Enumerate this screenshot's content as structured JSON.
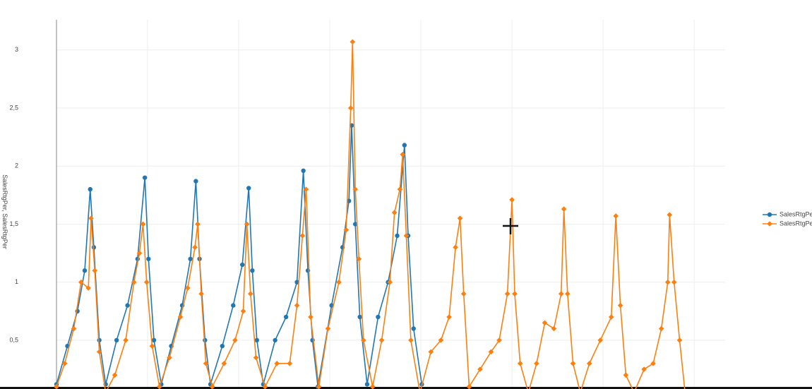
{
  "chart_data": {
    "type": "line",
    "y_label": "SalesRtgPer, SalesRtgPer",
    "xlim": [
      0,
      7.34
    ],
    "xticks": [
      0,
      1,
      2,
      3,
      4,
      5,
      6,
      7
    ],
    "ylim": [
      0.08,
      3.26
    ],
    "yticks": [
      {
        "value": 0.5,
        "label": "0,5"
      },
      1,
      {
        "value": 1.5,
        "label": "1,5"
      },
      2,
      {
        "value": 2.5,
        "label": "2,5"
      },
      3
    ],
    "grid": true,
    "legend": "right",
    "series": [
      {
        "name": "SalesRtgPer",
        "color": "#1f77b4",
        "marker": "circle",
        "x": [
          0,
          0.12,
          0.23,
          0.31,
          0.37,
          0.41,
          0.47,
          0.54,
          0.66,
          0.78,
          0.89,
          0.97,
          1.01,
          1.07,
          1.15,
          1.26,
          1.38,
          1.47,
          1.53,
          1.57,
          1.63,
          1.69,
          1.82,
          1.94,
          2.04,
          2.11,
          2.15,
          2.2,
          2.27,
          2.4,
          2.52,
          2.64,
          2.71,
          2.76,
          2.81,
          2.87,
          3.02,
          3.14,
          3.21,
          3.24,
          3.28,
          3.33,
          3.41,
          3.53,
          3.64,
          3.74,
          3.82,
          3.86,
          3.92,
          4.01
        ],
        "values": [
          0.12,
          0.45,
          0.75,
          1.1,
          1.8,
          1.3,
          0.5,
          0.12,
          0.5,
          0.8,
          1.2,
          1.9,
          1.2,
          0.5,
          0.12,
          0.45,
          0.8,
          1.2,
          1.87,
          1.2,
          0.5,
          0.12,
          0.45,
          0.8,
          1.15,
          1.81,
          1.1,
          0.5,
          0.12,
          0.5,
          0.7,
          1.0,
          1.96,
          1.1,
          0.5,
          0.1,
          0.8,
          1.3,
          1.7,
          2.35,
          1.5,
          0.7,
          0.12,
          0.7,
          1.0,
          1.4,
          2.18,
          1.4,
          0.6,
          0.12
        ]
      },
      {
        "name": "SalesRtgPer",
        "color": "#ff7f0e",
        "marker": "diamond",
        "x": [
          0,
          0.09,
          0.19,
          0.27,
          0.35,
          0.38,
          0.42,
          0.47,
          0.54,
          0.64,
          0.76,
          0.85,
          0.91,
          0.95,
          0.99,
          1.05,
          1.13,
          1.24,
          1.36,
          1.44,
          1.52,
          1.55,
          1.59,
          1.64,
          1.71,
          1.84,
          1.96,
          2.05,
          2.09,
          2.13,
          2.19,
          2.29,
          2.42,
          2.56,
          2.64,
          2.7,
          2.74,
          2.79,
          2.88,
          2.98,
          3.1,
          3.18,
          3.23,
          3.25,
          3.28,
          3.32,
          3.37,
          3.47,
          3.57,
          3.66,
          3.71,
          3.77,
          3.8,
          3.84,
          3.89,
          3.99,
          4.11,
          4.22,
          4.31,
          4.38,
          4.43,
          4.47,
          4.53,
          4.65,
          4.77,
          4.86,
          4.95,
          5.0,
          5.03,
          5.09,
          5.18,
          5.27,
          5.36,
          5.46,
          5.54,
          5.57,
          5.61,
          5.67,
          5.75,
          5.85,
          5.97,
          6.09,
          6.14,
          6.19,
          6.25,
          6.34,
          6.45,
          6.55,
          6.64,
          6.71,
          6.73,
          6.78,
          6.84,
          6.9
        ],
        "values": [
          0.1,
          0.3,
          0.6,
          1.0,
          0.95,
          1.55,
          1.1,
          0.4,
          0.05,
          0.2,
          0.5,
          1.0,
          1.25,
          1.5,
          1.0,
          0.45,
          0.1,
          0.35,
          0.7,
          0.95,
          1.3,
          1.5,
          0.9,
          0.3,
          0.1,
          0.3,
          0.5,
          0.75,
          1.5,
          0.9,
          0.35,
          0.1,
          0.3,
          0.3,
          0.8,
          1.4,
          1.8,
          0.7,
          0.1,
          0.6,
          1.0,
          1.45,
          2.5,
          3.07,
          1.8,
          1.2,
          0.5,
          0.1,
          0.5,
          1.0,
          1.6,
          1.8,
          2.1,
          1.4,
          0.5,
          0.05,
          0.4,
          0.5,
          0.7,
          1.3,
          1.55,
          0.9,
          0.1,
          0.25,
          0.4,
          0.5,
          0.9,
          1.71,
          0.9,
          0.3,
          0.05,
          0.3,
          0.65,
          0.6,
          0.9,
          1.63,
          0.9,
          0.3,
          0.05,
          0.3,
          0.5,
          0.7,
          1.57,
          0.8,
          0.2,
          0.05,
          0.25,
          0.3,
          0.6,
          1.0,
          1.58,
          1.0,
          0.5,
          0.05
        ]
      }
    ]
  }
}
